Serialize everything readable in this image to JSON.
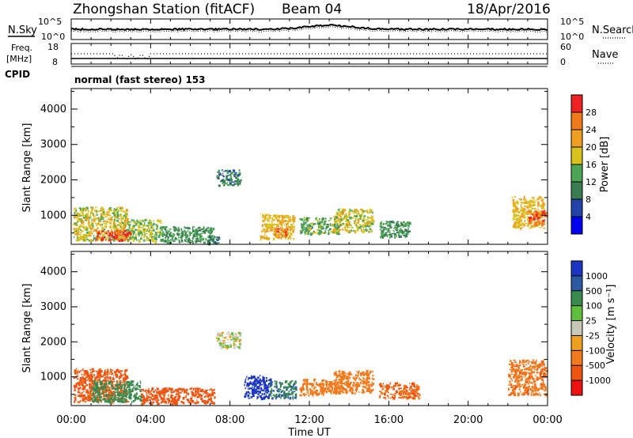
{
  "header": {
    "station": "Zhongshan Station (fitACF)",
    "beam": "Beam 04",
    "date": "18/Apr/2016"
  },
  "top_panel": {
    "left_label": "N.Sky",
    "right_label": "N.Search",
    "left_ticks": [
      "10^5",
      "10^0"
    ],
    "right_ticks": [
      "10^5",
      "10^0"
    ]
  },
  "freq_panel": {
    "left_label_1": "Freq.",
    "left_label_2": "[MHz]",
    "left_ticks": [
      "18",
      "8"
    ],
    "right_ticks": [
      "60",
      "0"
    ],
    "right_label": "Nave",
    "cpid_label": "CPID",
    "cpid_text": "normal (fast stereo) 153"
  },
  "x_axis": {
    "title": "Time UT",
    "ticks": [
      "00:00",
      "04:00",
      "08:00",
      "12:00",
      "16:00",
      "20:00",
      "00:00"
    ]
  },
  "colors": {
    "power_scale": [
      "#0000ee",
      "#2244aa",
      "#3b7d52",
      "#4da656",
      "#d8c21e",
      "#f0a020",
      "#f07a1a",
      "#ee2222"
    ],
    "velocity_scale": [
      "#ee1111",
      "#ee5511",
      "#f27a1c",
      "#f0a020",
      "#c8c8b8",
      "#5fbf3a",
      "#3a8a4e",
      "#2c5aa0",
      "#1a36c0"
    ]
  },
  "chart_data": [
    {
      "type": "heatmap",
      "name": "power",
      "ylabel": "Slant Range [km]",
      "ylim": [
        180,
        4580
      ],
      "yticks": [
        1000,
        2000,
        3000,
        4000
      ],
      "xlim_hours": [
        0,
        24
      ],
      "colorbar_label": "Power [dB]",
      "colorbar_ticks": [
        "4",
        "8",
        "12",
        "16",
        "20",
        "24",
        "28"
      ],
      "colorbar_range": [
        0,
        32
      ],
      "clusters": [
        {
          "t": [
            0.1,
            2.8
          ],
          "r": [
            300,
            1250
          ],
          "level": 18
        },
        {
          "t": [
            2.8,
            4.5
          ],
          "r": [
            280,
            900
          ],
          "level": 16
        },
        {
          "t": [
            4.5,
            7.2
          ],
          "r": [
            250,
            700
          ],
          "level": 12
        },
        {
          "t": [
            1.2,
            3.0
          ],
          "r": [
            300,
            600
          ],
          "level": 29
        },
        {
          "t": [
            6.8,
            7.4
          ],
          "r": [
            200,
            450
          ],
          "level": 10
        },
        {
          "t": [
            7.3,
            8.5
          ],
          "r": [
            1850,
            2300
          ],
          "level": 10
        },
        {
          "t": [
            9.5,
            11.2
          ],
          "r": [
            350,
            1050
          ],
          "level": 20
        },
        {
          "t": [
            10.2,
            10.9
          ],
          "r": [
            400,
            700
          ],
          "level": 26
        },
        {
          "t": [
            11.5,
            13.5
          ],
          "r": [
            500,
            950
          ],
          "level": 14
        },
        {
          "t": [
            13.2,
            15.2
          ],
          "r": [
            550,
            1200
          ],
          "level": 18
        },
        {
          "t": [
            15.5,
            17.0
          ],
          "r": [
            400,
            850
          ],
          "level": 12
        },
        {
          "t": [
            22.2,
            23.8
          ],
          "r": [
            650,
            1550
          ],
          "level": 20
        },
        {
          "t": [
            23.0,
            23.9
          ],
          "r": [
            750,
            1150
          ],
          "level": 28
        }
      ]
    },
    {
      "type": "heatmap",
      "name": "velocity",
      "ylabel": "Slant Range [km]",
      "ylim": [
        180,
        4580
      ],
      "yticks": [
        1000,
        2000,
        3000,
        4000
      ],
      "xlim_hours": [
        0,
        24
      ],
      "colorbar_label": "Velocity [m s⁻¹]",
      "colorbar_ticks": [
        "1000",
        "500",
        "100",
        "25",
        "-25",
        "-100",
        "-500",
        "-1000"
      ],
      "clusters": [
        {
          "t": [
            0.1,
            2.8
          ],
          "r": [
            300,
            1250
          ],
          "level": -400
        },
        {
          "t": [
            1.0,
            3.5
          ],
          "r": [
            300,
            900
          ],
          "level": 200
        },
        {
          "t": [
            3.5,
            7.2
          ],
          "r": [
            250,
            700
          ],
          "level": -450
        },
        {
          "t": [
            7.3,
            8.5
          ],
          "r": [
            1850,
            2300
          ],
          "level": 0
        },
        {
          "t": [
            8.7,
            10.0
          ],
          "r": [
            400,
            1050
          ],
          "level": 1100
        },
        {
          "t": [
            10.0,
            11.3
          ],
          "r": [
            400,
            900
          ],
          "level": 300
        },
        {
          "t": [
            11.5,
            13.5
          ],
          "r": [
            500,
            950
          ],
          "level": -200
        },
        {
          "t": [
            13.2,
            15.2
          ],
          "r": [
            550,
            1200
          ],
          "level": -150
        },
        {
          "t": [
            15.5,
            17.5
          ],
          "r": [
            400,
            850
          ],
          "level": -300
        },
        {
          "t": [
            22.0,
            23.9
          ],
          "r": [
            500,
            1500
          ],
          "level": -250
        }
      ]
    }
  ]
}
